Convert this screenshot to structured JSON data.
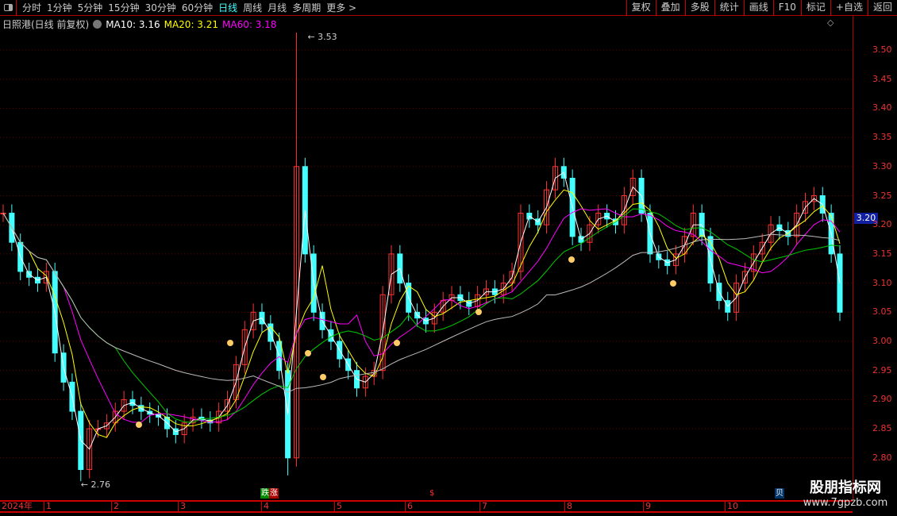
{
  "toolbar": {
    "periods": [
      "分时",
      "1分钟",
      "5分钟",
      "15分钟",
      "30分钟",
      "60分钟",
      "日线",
      "周线",
      "月线",
      "多周期",
      "更多 >"
    ],
    "active_period": "日线",
    "actions": [
      "复权",
      "叠加",
      "多股",
      "统计",
      "画线",
      "F10",
      "标记",
      "+自选",
      "返回"
    ]
  },
  "info": {
    "stock": "日照港(日线 前复权)",
    "ma10": "MA10: 3.16",
    "ma20": "MA20: 3.21",
    "ma60": "MA60: 3.18",
    "colors": {
      "ma10": "#ffffff",
      "ma20": "#ffff00",
      "ma60": "#ff00ff"
    }
  },
  "yaxis": {
    "ticks": [
      "3.50",
      "3.45",
      "3.40",
      "3.35",
      "3.30",
      "3.25",
      "3.20",
      "3.15",
      "3.10",
      "3.05",
      "3.00",
      "2.95",
      "2.90",
      "2.85",
      "2.80"
    ],
    "current": "3.20"
  },
  "xaxis": {
    "year": "2024年",
    "months": [
      "1",
      "2",
      "3",
      "4",
      "5",
      "6",
      "7",
      "8",
      "9",
      "10"
    ]
  },
  "annotations": {
    "high": "3.53",
    "low": "2.76"
  },
  "badges": {
    "b1": "跌",
    "b2": "涨",
    "b3": "$",
    "b4": "贝"
  },
  "watermark": {
    "name": "股朋指标网",
    "url": "www.7gpzb.com"
  },
  "chart_data": {
    "type": "candlestick",
    "ylim": [
      2.76,
      3.53
    ],
    "colors": {
      "up": "#ff3333",
      "down": "#44ffff"
    },
    "closes": [
      3.22,
      3.17,
      3.12,
      3.11,
      3.1,
      3.12,
      2.98,
      2.93,
      2.88,
      2.78,
      2.85,
      2.85,
      2.86,
      2.88,
      2.9,
      2.89,
      2.88,
      2.875,
      2.87,
      2.85,
      2.84,
      2.86,
      2.87,
      2.865,
      2.86,
      2.88,
      2.9,
      2.96,
      3.02,
      3.05,
      3.03,
      3.0,
      2.95,
      2.8,
      3.3,
      3.15,
      3.05,
      3.02,
      3.0,
      2.97,
      2.95,
      2.92,
      2.94,
      2.95,
      3.08,
      3.15,
      3.1,
      3.05,
      3.04,
      3.03,
      3.05,
      3.07,
      3.08,
      3.07,
      3.06,
      3.08,
      3.09,
      3.08,
      3.1,
      3.12,
      3.22,
      3.21,
      3.2,
      3.26,
      3.3,
      3.28,
      3.18,
      3.17,
      3.2,
      3.22,
      3.21,
      3.2,
      3.25,
      3.28,
      3.22,
      3.15,
      3.14,
      3.13,
      3.15,
      3.18,
      3.22,
      3.18,
      3.1,
      3.07,
      3.05,
      3.1,
      3.12,
      3.15,
      3.17,
      3.2,
      3.19,
      3.18,
      3.22,
      3.24,
      3.25,
      3.22,
      3.15,
      3.05
    ]
  }
}
